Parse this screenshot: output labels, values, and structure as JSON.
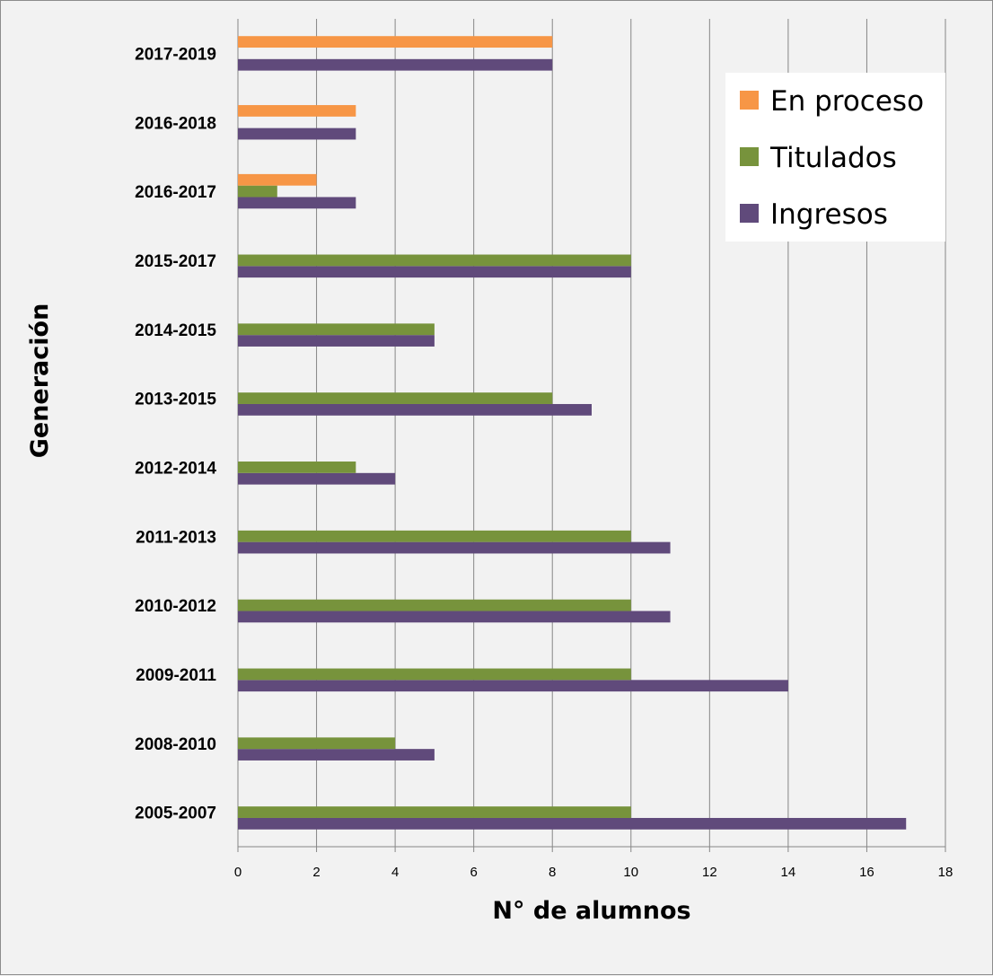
{
  "chart_data": {
    "type": "bar",
    "orientation": "horizontal",
    "categories": [
      "2005-2007",
      "2008-2010",
      "2009-2011",
      "2010-2012",
      "2011-2013",
      "2012-2014",
      "2013-2015",
      "2014-2015",
      "2015-2017",
      "2016-2017",
      "2016-2018",
      "2017-2019"
    ],
    "series": [
      {
        "name": "Ingresos",
        "color": "#604a7b",
        "values": [
          17,
          5,
          14,
          11,
          11,
          4,
          9,
          5,
          10,
          3,
          3,
          8
        ]
      },
      {
        "name": "Titulados",
        "color": "#77933c",
        "values": [
          10,
          4,
          10,
          10,
          10,
          3,
          8,
          5,
          10,
          1,
          null,
          null
        ]
      },
      {
        "name": "En proceso",
        "color": "#f79646",
        "values": [
          null,
          null,
          null,
          null,
          null,
          null,
          null,
          null,
          null,
          2,
          3,
          8
        ]
      }
    ],
    "xlabel": "N° de alumnos",
    "ylabel": "Generación",
    "xlim": [
      0,
      18
    ],
    "xticks": [
      0,
      2,
      4,
      6,
      8,
      10,
      12,
      14,
      16,
      18
    ],
    "grid": "vertical",
    "legend": {
      "placement": "top-right",
      "order": [
        "En proceso",
        "Titulados",
        "Ingresos"
      ]
    }
  }
}
